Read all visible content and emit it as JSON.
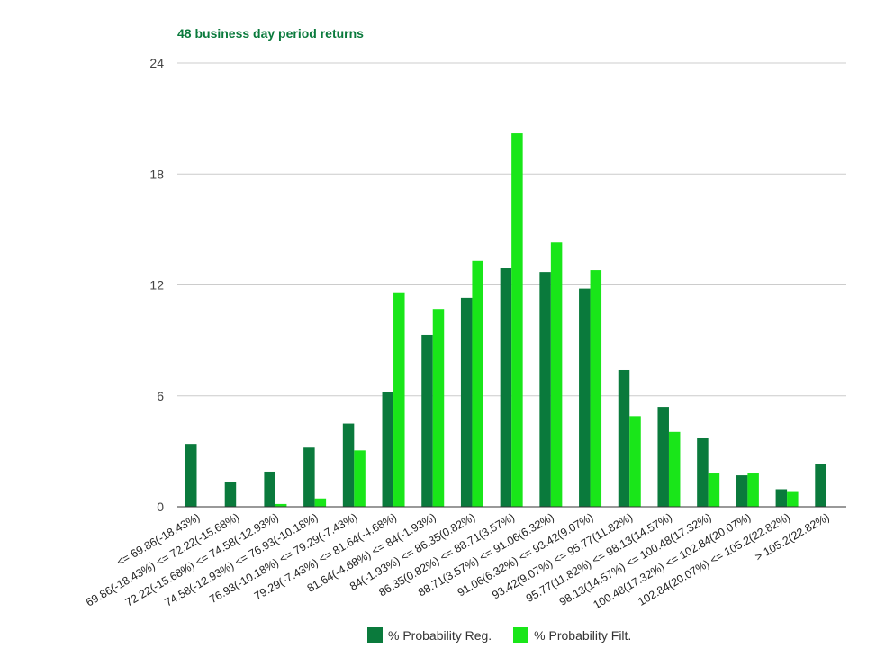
{
  "chart_data": {
    "type": "bar",
    "title": "48 business day period returns",
    "xlabel": "",
    "ylabel": "",
    "ylim": [
      0,
      24
    ],
    "yticks": [
      "0",
      "6",
      "12",
      "18",
      "24"
    ],
    "grid": true,
    "legend_position": "bottom",
    "categories": [
      "<= 69.86(-18.43%)",
      "69.86(-18.43%) <= 72.22(-15.68%)",
      "72.22(-15.68%) <= 74.58(-12.93%)",
      "74.58(-12.93%) <= 76.93(-10.18%)",
      "76.93(-10.18%) <= 79.29(-7.43%)",
      "79.29(-7.43%) <= 81.64(-4.68%)",
      "81.64(-4.68%) <= 84(-1.93%)",
      "84(-1.93%) <= 86.35(0.82%)",
      "86.35(0.82%) <= 88.71(3.57%)",
      "88.71(3.57%) <= 91.06(6.32%)",
      "91.06(6.32%) <= 93.42(9.07%)",
      "93.42(9.07%) <= 95.77(11.82%)",
      "95.77(11.82%) <= 98.13(14.57%)",
      "98.13(14.57%) <= 100.48(17.32%)",
      "100.48(17.32%) <= 102.84(20.07%)",
      "102.84(20.07%) <= 105.2(22.82%)",
      "> 105.2(22.82%)"
    ],
    "series": [
      {
        "name": "% Probability Reg.",
        "color": "#0a7a3c",
        "values": [
          3.4,
          1.35,
          1.9,
          3.2,
          4.5,
          6.2,
          9.3,
          11.3,
          12.9,
          12.7,
          11.8,
          7.4,
          5.4,
          3.7,
          1.7,
          0.95,
          2.3
        ]
      },
      {
        "name": "% Probability Filt.",
        "color": "#19e619",
        "values": [
          0,
          0,
          0.15,
          0.45,
          3.05,
          11.6,
          10.7,
          13.3,
          20.2,
          14.3,
          12.8,
          4.9,
          4.05,
          1.8,
          1.8,
          0.8,
          0
        ]
      }
    ]
  }
}
